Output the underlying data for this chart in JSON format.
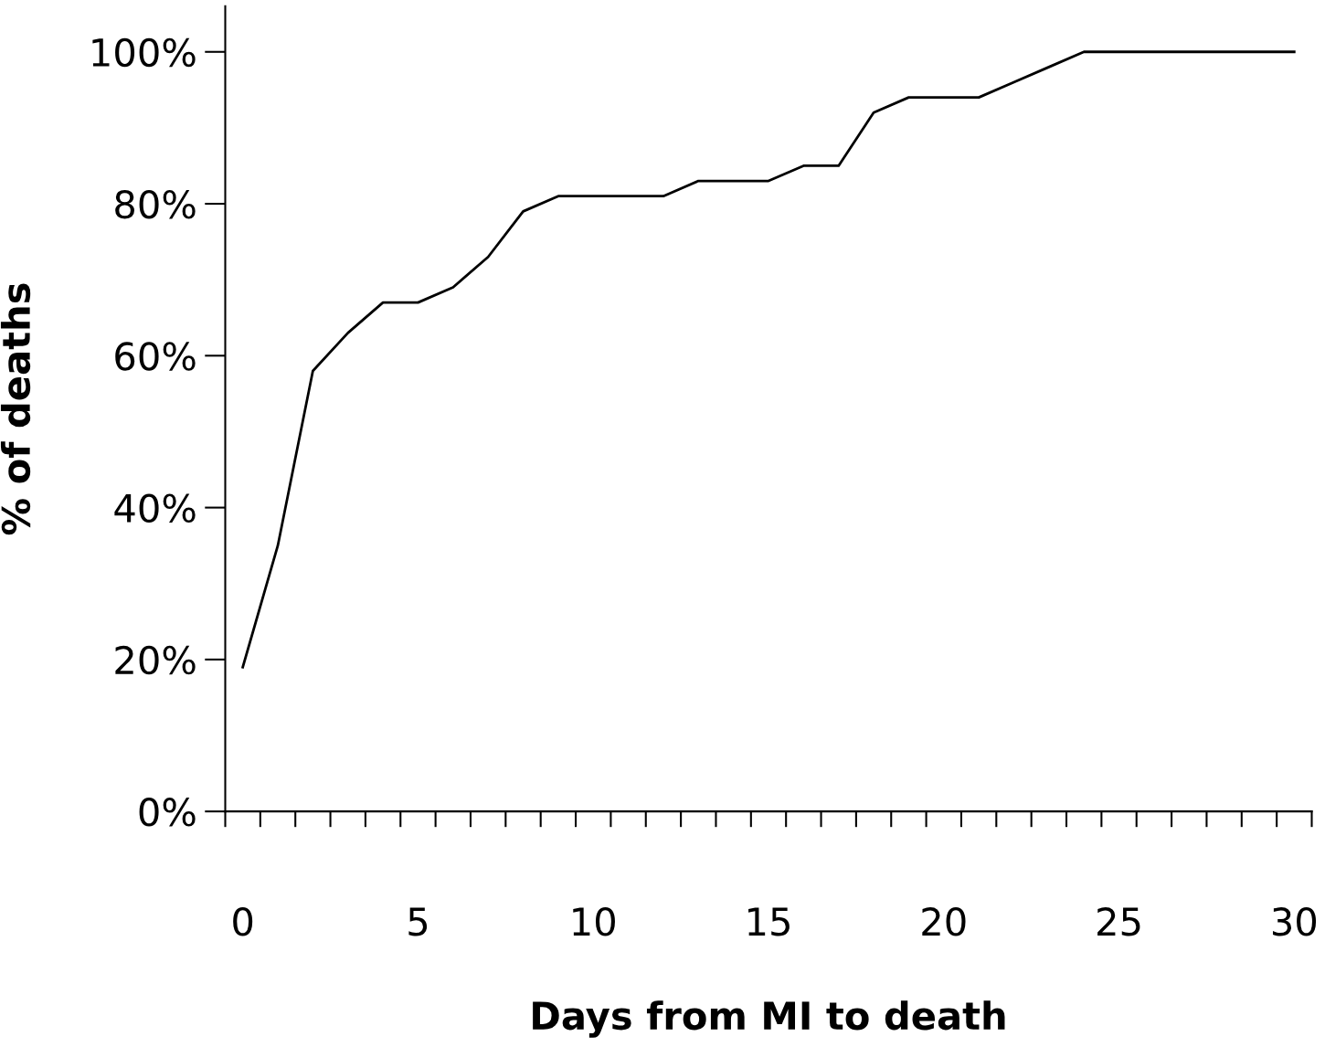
{
  "chart_data": {
    "type": "line",
    "xlabel": "Days from MI to death",
    "ylabel": "% of deaths",
    "x": [
      0,
      1,
      2,
      3,
      4,
      5,
      6,
      7,
      8,
      9,
      10,
      11,
      12,
      13,
      14,
      15,
      16,
      17,
      18,
      19,
      20,
      21,
      22,
      23,
      24,
      25,
      26,
      27,
      28,
      29,
      30
    ],
    "series": [
      {
        "color": "#000000",
        "values": [
          19,
          35,
          58,
          63,
          67,
          67,
          69,
          73,
          79,
          81,
          81,
          81,
          81,
          83,
          83,
          83,
          85,
          85,
          92,
          94,
          94,
          94,
          96,
          98,
          100,
          100,
          100,
          100,
          100,
          100,
          100
        ]
      }
    ],
    "xlim": [
      -0.5,
      30.5
    ],
    "xticks": [
      0,
      5,
      10,
      15,
      20,
      25,
      30,
      {
        "value": -0.5,
        "label": null
      },
      {
        "value": 0.5,
        "label": null
      },
      {
        "value": 1.5,
        "label": null
      },
      {
        "value": 2.5,
        "label": null
      },
      {
        "value": 3.5,
        "label": null
      },
      {
        "value": 4.5,
        "label": null
      },
      {
        "value": 5.5,
        "label": null
      },
      {
        "value": 6.5,
        "label": null
      },
      {
        "value": 7.5,
        "label": null
      },
      {
        "value": 8.5,
        "label": null
      },
      {
        "value": 9.5,
        "label": null
      },
      {
        "value": 10.5,
        "label": null
      },
      {
        "value": 11.5,
        "label": null
      },
      {
        "value": 12.5,
        "label": null
      },
      {
        "value": 13.5,
        "label": null
      },
      {
        "value": 14.5,
        "label": null
      },
      {
        "value": 15.5,
        "label": null
      },
      {
        "value": 16.5,
        "label": null
      },
      {
        "value": 17.5,
        "label": null
      },
      {
        "value": 18.5,
        "label": null
      },
      {
        "value": 19.5,
        "label": null
      },
      {
        "value": 20.5,
        "label": null
      },
      {
        "value": 21.5,
        "label": null
      },
      {
        "value": 22.5,
        "label": null
      },
      {
        "value": 23.5,
        "label": null
      },
      {
        "value": 24.5,
        "label": null
      },
      {
        "value": 25.5,
        "label": null
      },
      {
        "value": 26.5,
        "label": null
      },
      {
        "value": 27.5,
        "label": null
      },
      {
        "value": 28.5,
        "label": null
      },
      {
        "value": 29.5,
        "label": null
      },
      {
        "value": 30.5,
        "label": null
      }
    ],
    "ylim": [
      0,
      106
    ],
    "yticks": [
      {
        "value": 0,
        "label": "0%"
      },
      {
        "value": 20,
        "label": "20%"
      },
      {
        "value": 40,
        "label": "40%"
      },
      {
        "value": 60,
        "label": "60%"
      },
      {
        "value": 80,
        "label": "80%"
      },
      {
        "value": 100,
        "label": "100%"
      }
    ],
    "grid": false,
    "legend": false,
    "marker": "none",
    "line_style": "solid"
  }
}
